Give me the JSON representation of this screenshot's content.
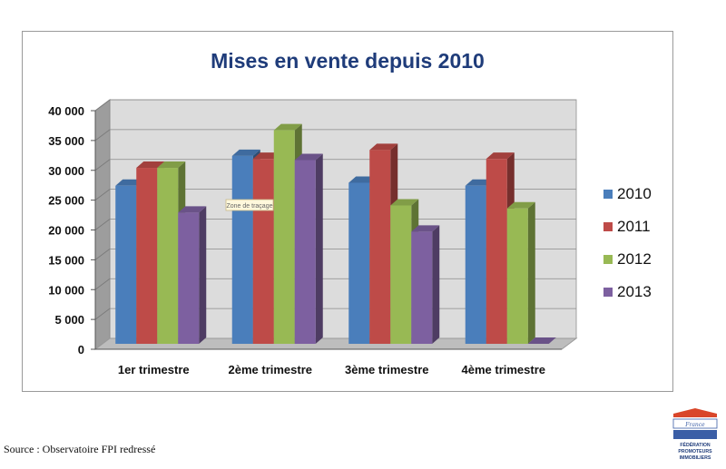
{
  "chart_data": {
    "type": "bar",
    "title": "Mises en vente depuis 2010",
    "xlabel": "",
    "ylabel": "",
    "categories": [
      "1er trimestre",
      "2ème trimestre",
      "3ème trimestre",
      "4ème trimestre"
    ],
    "ylim": [
      0,
      40000
    ],
    "ytick_labels": [
      "0",
      "5 000",
      "10 000",
      "15 000",
      "20 000",
      "25 000",
      "30 000",
      "35 000",
      "40 000"
    ],
    "grid": true,
    "legend_position": "right",
    "series": [
      {
        "name": "2010",
        "color": "#4a7ebb",
        "values": [
          26500,
          31500,
          27000,
          26500
        ]
      },
      {
        "name": "2011",
        "color": "#be4b48",
        "values": [
          29500,
          31000,
          32500,
          31000
        ]
      },
      {
        "name": "2012",
        "color": "#98b954",
        "values": [
          29500,
          35800,
          23200,
          22700
        ]
      },
      {
        "name": "2013",
        "color": "#7d60a0",
        "values": [
          22000,
          30800,
          18800,
          0
        ]
      }
    ],
    "annotation": "Zone de traçage"
  },
  "source_note": "Source : Observatoire FPI redressé",
  "logo": {
    "icon": "fpi-logo-icon",
    "brand_text": "France",
    "lines": [
      "FÉDÉRATION",
      "PROMOTEURS",
      "IMMOBILIERS"
    ]
  }
}
